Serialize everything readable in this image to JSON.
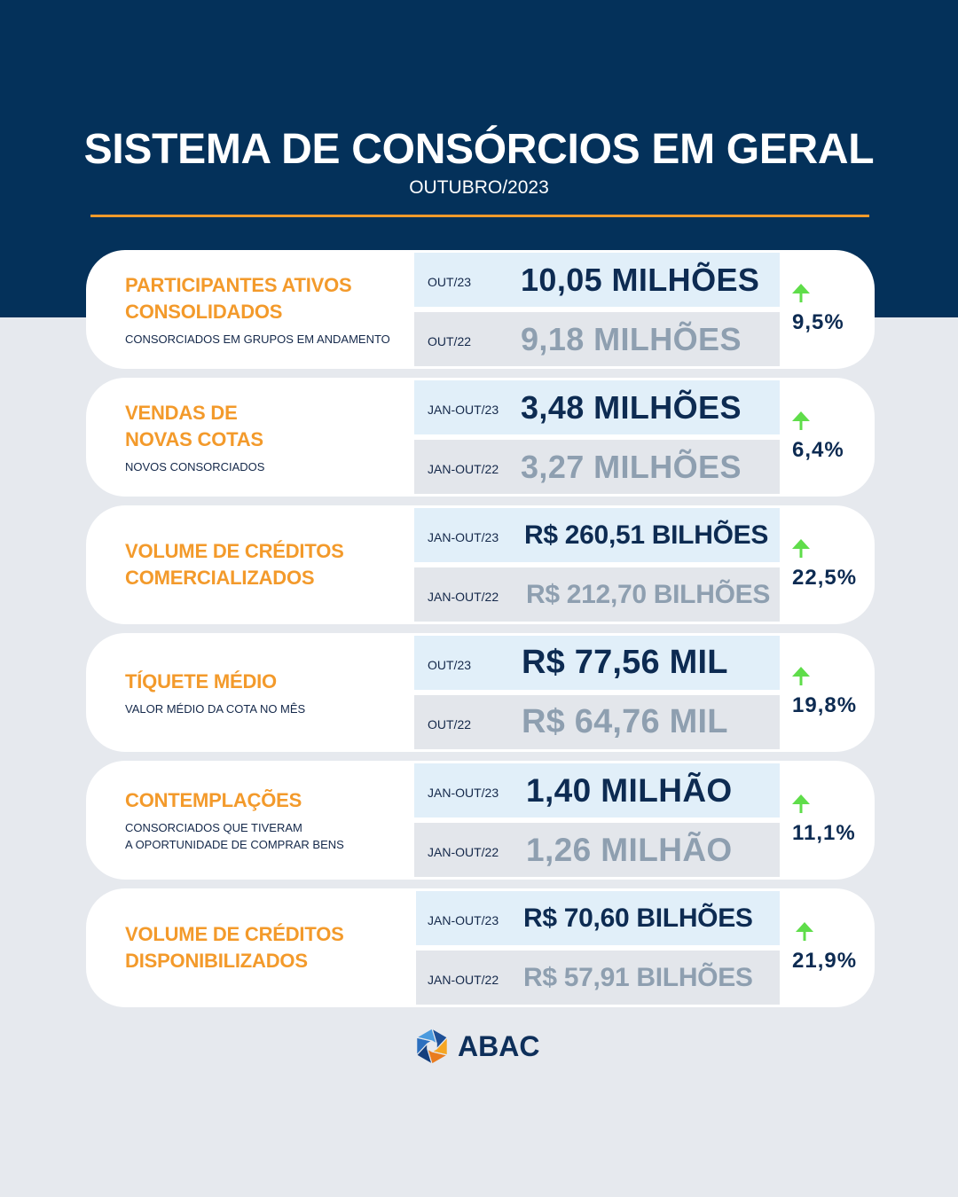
{
  "header": {
    "title": "SISTEMA DE CONSÓRCIOS EM GERAL",
    "subtitle": "OUTUBRO/2023"
  },
  "cards": [
    {
      "title_lines": [
        "PARTICIPANTES ATIVOS",
        "CONSOLIDADOS"
      ],
      "subtitle_lines": [
        "CONSORCIADOS EM GRUPOS EM ANDAMENTO"
      ],
      "current": {
        "period": "OUT/23",
        "value": "10,05 MILHÕES"
      },
      "previous": {
        "period": "OUT/22",
        "value": "9,18 MILHÕES"
      },
      "change": {
        "value": "9,5%",
        "icon": "up-arrow-icon"
      }
    },
    {
      "title_lines": [
        "VENDAS DE",
        "NOVAS COTAS"
      ],
      "subtitle_lines": [
        "NOVOS CONSORCIADOS"
      ],
      "current": {
        "period": "JAN-OUT/23",
        "value": "3,48 MILHÕES"
      },
      "previous": {
        "period": "JAN-OUT/22",
        "value": "3,27 MILHÕES"
      },
      "change": {
        "value": "6,4%",
        "icon": "up-arrow-icon"
      }
    },
    {
      "title_lines": [
        "VOLUME DE CRÉDITOS",
        "COMERCIALIZADOS"
      ],
      "current": {
        "period": "JAN-OUT/23",
        "value": "R$ 260,51 BILHÕES"
      },
      "previous": {
        "period": "JAN-OUT/22",
        "value": "R$ 212,70 BILHÕES"
      },
      "change": {
        "value": "22,5%",
        "icon": "up-arrow-icon"
      }
    },
    {
      "title_lines": [
        "TÍQUETE MÉDIO"
      ],
      "subtitle_lines": [
        "VALOR MÉDIO DA COTA NO MÊS"
      ],
      "current": {
        "period": "OUT/23",
        "value": "R$ 77,56 MIL"
      },
      "previous": {
        "period": "OUT/22",
        "value": "R$ 64,76 MIL"
      },
      "change": {
        "value": "19,8%",
        "icon": "up-arrow-icon"
      }
    },
    {
      "title_lines": [
        "CONTEMPLAÇÕES"
      ],
      "subtitle_lines": [
        "CONSORCIADOS QUE TIVERAM",
        "A OPORTUNIDADE DE COMPRAR BENS"
      ],
      "current": {
        "period": "JAN-OUT/23",
        "value": "1,40 MILHÃO"
      },
      "previous": {
        "period": "JAN-OUT/22",
        "value": "1,26 MILHÃO"
      },
      "change": {
        "value": "11,1%",
        "icon": "up-arrow-icon"
      }
    },
    {
      "title_lines": [
        "VOLUME DE CRÉDITOS",
        "DISPONIBILIZADOS"
      ],
      "current": {
        "period": "JAN-OUT/23",
        "value": "R$ 70,60 BILHÕES"
      },
      "previous": {
        "period": "JAN-OUT/22",
        "value": "R$ 57,91 BILHÕES"
      },
      "change": {
        "value": "21,9%",
        "icon": "up-arrow-icon"
      }
    }
  ],
  "logo": {
    "icon": "abac-logo-icon",
    "text": "ABAC"
  },
  "colors": {
    "header_band": "#04315a",
    "page_background": "#e6e9ee",
    "accent_orange": "#f39a2b",
    "current_value": "#0d2b52",
    "previous_value": "#8e9fb0",
    "current_row": "#e1eff9",
    "previous_row": "#e3e6eb",
    "trend_up": "#5fdd4a"
  }
}
